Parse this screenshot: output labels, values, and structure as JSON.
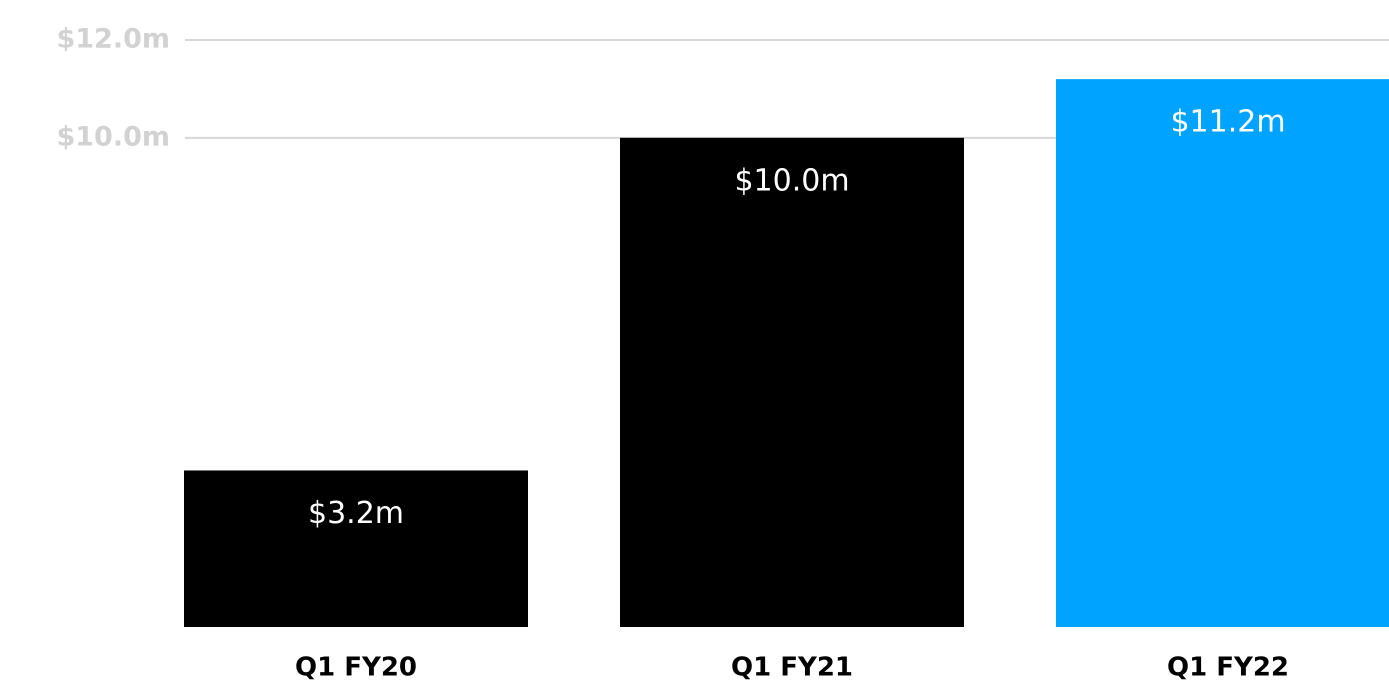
{
  "chart_data": {
    "type": "bar",
    "categories": [
      "Q1 FY20",
      "Q1 FY21",
      "Q1 FY22"
    ],
    "values": [
      3.2,
      10.0,
      11.2
    ],
    "value_labels": [
      "$3.2m",
      "$10.0m",
      "$11.2m"
    ],
    "colors": [
      "#000000",
      "#000000",
      "#00a3ff"
    ],
    "ylim": [
      0,
      12
    ],
    "yticks": [
      {
        "value": 10,
        "label": "$10.0m"
      },
      {
        "value": 12,
        "label": "$12.0m"
      }
    ],
    "grid": true
  }
}
